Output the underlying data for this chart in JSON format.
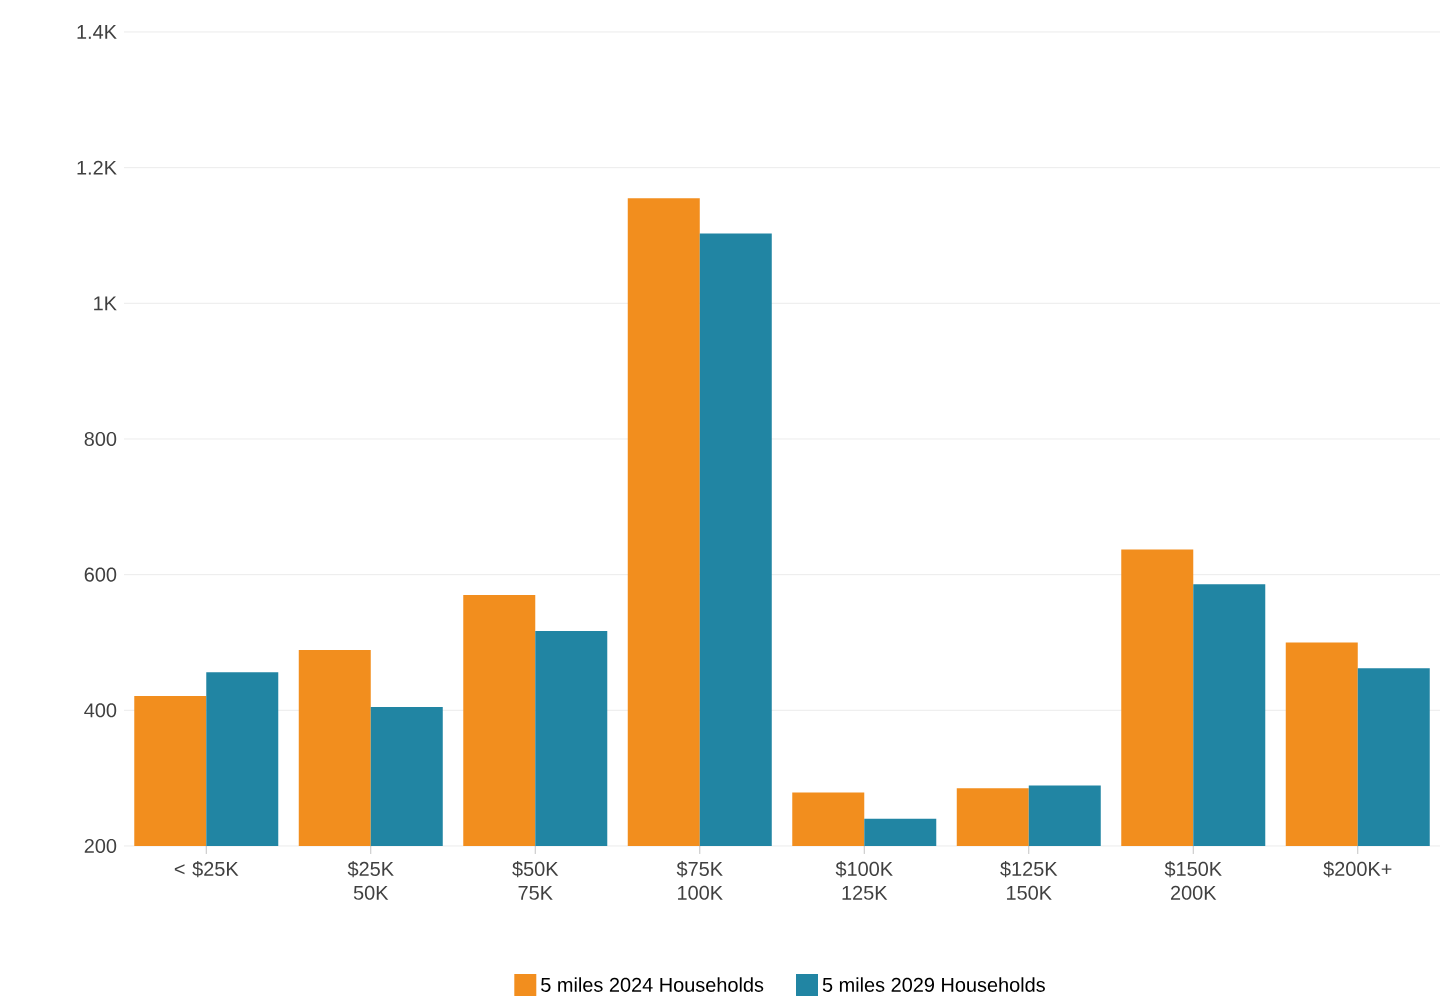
{
  "chart_data": {
    "type": "bar",
    "categories": [
      "< $25K",
      "$25K 50K",
      "$50K 75K",
      "$75K 100K",
      "$100K 125K",
      "$125K 150K",
      "$150K 200K",
      "$200K+"
    ],
    "series": [
      {
        "name": "5 miles 2024 Households",
        "color": "#f28e1e",
        "values": [
          421,
          489,
          570,
          1155,
          279,
          285,
          637,
          500
        ]
      },
      {
        "name": "5 miles 2029 Households",
        "color": "#2185a3",
        "values": [
          456,
          405,
          517,
          1103,
          240,
          289,
          586,
          462
        ]
      }
    ],
    "ylim": [
      200,
      1400
    ],
    "yticks": [
      200,
      400,
      600,
      800,
      {
        "value": 1000,
        "label": "1K"
      },
      {
        "value": 1200,
        "label": "1.2K"
      },
      {
        "value": 1400,
        "label": "1.4K"
      }
    ],
    "grid": "y",
    "legend": "bottom"
  }
}
